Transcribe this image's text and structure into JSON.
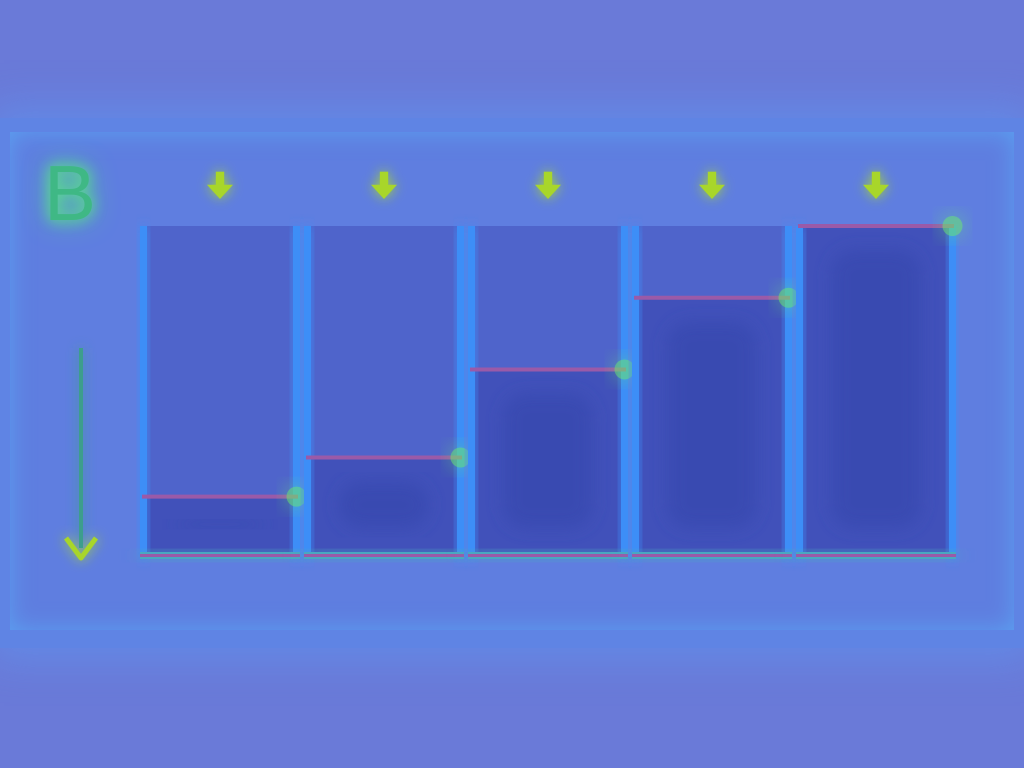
{
  "panel": {
    "label": "B",
    "direction_icon": "down-arrow-icon",
    "cell_count": 5,
    "cells": [
      {
        "fill_level": 0.17,
        "arrow_icon": "down-arrow-icon"
      },
      {
        "fill_level": 0.29,
        "arrow_icon": "down-arrow-icon"
      },
      {
        "fill_level": 0.56,
        "arrow_icon": "down-arrow-icon"
      },
      {
        "fill_level": 0.78,
        "arrow_icon": "down-arrow-icon"
      },
      {
        "fill_level": 1.0,
        "arrow_icon": "down-arrow-icon"
      }
    ]
  },
  "colors": {
    "background": "#6a7ad8",
    "panel": "#5f84e4",
    "cell_wall": "#3d8ef7",
    "fill": "#3f4fb8",
    "level_line": "#9a5aa8",
    "highlight_glow": "#6cf06a",
    "arrow": "#a8d62a"
  }
}
